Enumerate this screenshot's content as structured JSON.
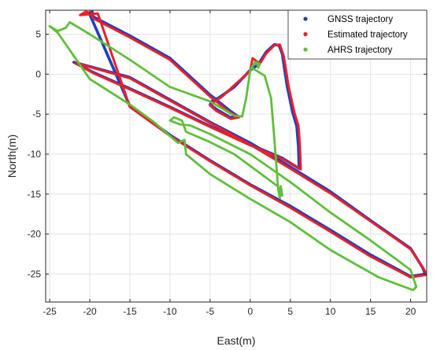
{
  "chart_data": {
    "type": "line",
    "title": "",
    "xlabel": "East(m)",
    "ylabel": "North(m)",
    "xlim": [
      -25.5,
      22
    ],
    "ylim": [
      -28.5,
      8
    ],
    "xticks": [
      -25,
      -20,
      -15,
      -10,
      -5,
      0,
      5,
      10,
      15,
      20
    ],
    "yticks": [
      5,
      0,
      -5,
      -10,
      -15,
      -20,
      -25
    ],
    "grid": true,
    "legend_position": "top-right",
    "series": [
      {
        "name": "GNSS trajectory",
        "color": "#1f3fbf",
        "points": [
          [
            -20,
            7.6
          ],
          [
            -19.7,
            7.8
          ],
          [
            -19.6,
            7.2
          ],
          [
            -15,
            4.8
          ],
          [
            -10,
            2.0
          ],
          [
            -5,
            -2.6
          ],
          [
            -2.5,
            -4.6
          ],
          [
            -1.5,
            -5.3
          ],
          [
            -2.5,
            -5.4
          ],
          [
            -4.2,
            -4.4
          ],
          [
            -5,
            -3.8
          ],
          [
            -4.7,
            -3.3
          ],
          [
            -4,
            -3.0
          ],
          [
            -2,
            -1.6
          ],
          [
            0,
            0.5
          ],
          [
            1,
            1.2
          ],
          [
            2,
            2.8
          ],
          [
            3,
            3.7
          ],
          [
            3.6,
            3.6
          ],
          [
            4,
            2.5
          ],
          [
            4.6,
            -1.5
          ],
          [
            5.3,
            -4.8
          ],
          [
            5.8,
            -6.5
          ],
          [
            6,
            -9.0
          ],
          [
            6.1,
            -11.8
          ],
          [
            4,
            -10.5
          ],
          [
            0,
            -8.8
          ],
          [
            -5,
            -6.5
          ],
          [
            -10,
            -4.1
          ],
          [
            -15,
            -1.8
          ],
          [
            -19.5,
            0.2
          ],
          [
            -22,
            1.5
          ],
          [
            -15,
            -0.4
          ],
          [
            -10,
            -3.2
          ],
          [
            -5,
            -6.0
          ],
          [
            0,
            -8.6
          ],
          [
            5,
            -11.6
          ],
          [
            10,
            -14.7
          ],
          [
            15,
            -18.3
          ],
          [
            20,
            -21.8
          ],
          [
            21.5,
            -24.2
          ],
          [
            21.8,
            -25.0
          ],
          [
            20,
            -25.3
          ],
          [
            15,
            -22.6
          ],
          [
            10,
            -19.5
          ],
          [
            5,
            -16.5
          ],
          [
            0,
            -13.8
          ],
          [
            -5,
            -10.8
          ],
          [
            -10,
            -7.6
          ],
          [
            -15,
            -4.0
          ],
          [
            -20,
            7.5
          ]
        ]
      },
      {
        "name": "Estimated trajectory",
        "color": "#e8202a",
        "points": [
          [
            -21.2,
            7.4
          ],
          [
            -20.5,
            7.8
          ],
          [
            -19.8,
            7.6
          ],
          [
            -19.6,
            7.0
          ],
          [
            -15,
            4.6
          ],
          [
            -10,
            1.8
          ],
          [
            -5,
            -2.8
          ],
          [
            -2.5,
            -4.8
          ],
          [
            -1.4,
            -5.4
          ],
          [
            -2.4,
            -5.6
          ],
          [
            -4.2,
            -4.6
          ],
          [
            -5,
            -3.9
          ],
          [
            -4.4,
            -3.4
          ],
          [
            -3.5,
            -2.8
          ],
          [
            -2,
            -1.4
          ],
          [
            0,
            0.4
          ],
          [
            0.3,
            2.0
          ],
          [
            1.2,
            1.3
          ],
          [
            2,
            2.6
          ],
          [
            3,
            3.6
          ],
          [
            3.7,
            3.7
          ],
          [
            4.2,
            2.2
          ],
          [
            4.8,
            -1.6
          ],
          [
            5.5,
            -4.8
          ],
          [
            6,
            -6.4
          ],
          [
            6.2,
            -9.0
          ],
          [
            6.3,
            -11.9
          ],
          [
            4,
            -10.6
          ],
          [
            0,
            -8.9
          ],
          [
            -5,
            -6.6
          ],
          [
            -10,
            -4.2
          ],
          [
            -15,
            -1.9
          ],
          [
            -19.5,
            0.1
          ],
          [
            -21.8,
            1.4
          ],
          [
            -15,
            -0.5
          ],
          [
            -10,
            -3.3
          ],
          [
            -5,
            -6.1
          ],
          [
            0,
            -8.8
          ],
          [
            5,
            -11.8
          ],
          [
            10,
            -14.9
          ],
          [
            15,
            -18.4
          ],
          [
            20,
            -21.9
          ],
          [
            21.6,
            -24.3
          ],
          [
            22,
            -25.1
          ],
          [
            20,
            -25.4
          ],
          [
            15,
            -22.8
          ],
          [
            10,
            -19.7
          ],
          [
            5,
            -16.7
          ],
          [
            0,
            -13.9
          ],
          [
            -5,
            -10.9
          ],
          [
            -10,
            -7.7
          ],
          [
            -15,
            -4.1
          ],
          [
            -19,
            7.6
          ],
          [
            -21.2,
            7.4
          ]
        ]
      },
      {
        "name": "AHRS trajectory",
        "color": "#5fbf3a",
        "points": [
          [
            -25,
            6.0
          ],
          [
            -24,
            5.4
          ],
          [
            -23,
            5.8
          ],
          [
            -22.5,
            6.5
          ],
          [
            -22,
            6.2
          ],
          [
            -20,
            5.0
          ],
          [
            -15,
            1.8
          ],
          [
            -10,
            -1.6
          ],
          [
            -5,
            -3.4
          ],
          [
            -3,
            -4.6
          ],
          [
            -2,
            -5.2
          ],
          [
            -1,
            -5.3
          ],
          [
            -0.5,
            -3.0
          ],
          [
            0,
            0.5
          ],
          [
            0.4,
            1.2
          ],
          [
            0.8,
            1.5
          ],
          [
            1,
            0.8
          ],
          [
            1.2,
            1.3
          ],
          [
            0.6,
            1.5
          ],
          [
            0.2,
            0.8
          ],
          [
            1.8,
            -0.2
          ],
          [
            2.6,
            -3.0
          ],
          [
            3,
            -8.0
          ],
          [
            3.3,
            -12.0
          ],
          [
            3.5,
            -14.5
          ],
          [
            3.7,
            -15.5
          ],
          [
            3.8,
            -14.0
          ],
          [
            4,
            -15.2
          ],
          [
            3.4,
            -14.0
          ],
          [
            -2,
            -10.0
          ],
          [
            -5,
            -8.5
          ],
          [
            -8,
            -7.2
          ],
          [
            -8.5,
            -5.8
          ],
          [
            -9.5,
            -5.4
          ],
          [
            -10,
            -5.8
          ],
          [
            -8.7,
            -6.3
          ],
          [
            -7.5,
            -6.4
          ],
          [
            -5,
            -7.5
          ],
          [
            -3,
            -8.5
          ],
          [
            0,
            -10.0
          ],
          [
            5,
            -13.5
          ],
          [
            10,
            -17.3
          ],
          [
            15,
            -20.8
          ],
          [
            18,
            -23.0
          ],
          [
            20,
            -24.5
          ],
          [
            20.7,
            -26.6
          ],
          [
            20.3,
            -27.0
          ],
          [
            16,
            -25.4
          ],
          [
            10,
            -22.0
          ],
          [
            5,
            -18.5
          ],
          [
            0,
            -15.6
          ],
          [
            -5,
            -12.5
          ],
          [
            -8,
            -10.0
          ],
          [
            -8.2,
            -8.2
          ],
          [
            -9,
            -8.6
          ],
          [
            -12,
            -6.0
          ],
          [
            -15,
            -3.8
          ],
          [
            -20,
            -0.6
          ],
          [
            -24,
            5.2
          ],
          [
            -25,
            6.0
          ]
        ]
      }
    ]
  }
}
